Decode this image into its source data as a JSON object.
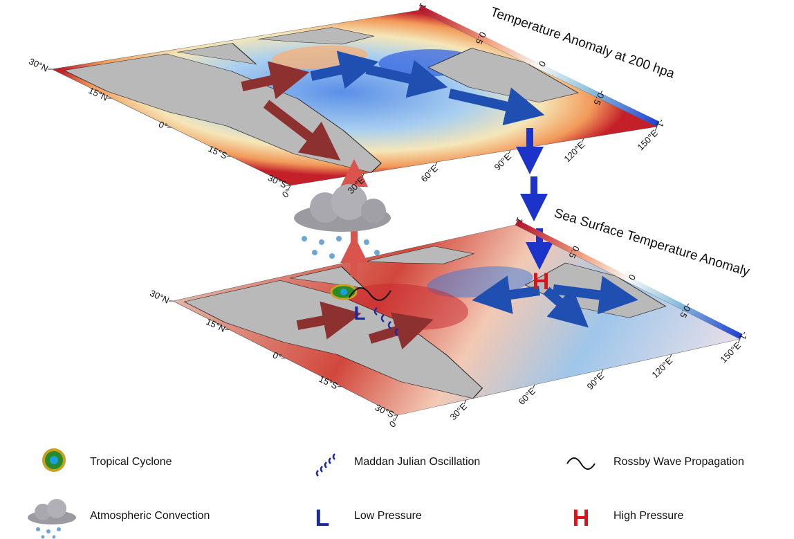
{
  "panels": [
    {
      "title": "Temperature Anomaly at 200 hpa",
      "colorbar_labels": [
        "1",
        "0.5",
        "0",
        "-0.5",
        "-1"
      ],
      "lat_labels": [
        "30°N",
        "15°N",
        "0°",
        "15°S",
        "30°S"
      ],
      "lon_labels": [
        "0°",
        "30°E",
        "60°E",
        "90°E",
        "120°E",
        "150°E"
      ]
    },
    {
      "title": "Sea Surface Temperature Anomaly",
      "colorbar_labels": [
        "1",
        "0.5",
        "0",
        "-0.5",
        "-1"
      ],
      "lat_labels": [
        "30°N",
        "15°N",
        "0°",
        "15°S",
        "30°S"
      ],
      "lon_labels": [
        "0°",
        "30°E",
        "60°E",
        "90°E",
        "120°E",
        "150°E"
      ],
      "pressure_labels": {
        "low": "L",
        "high": "H"
      }
    }
  ],
  "legend": [
    {
      "label": "Tropical Cyclone"
    },
    {
      "label": "Maddan Julian Oscillation"
    },
    {
      "label": "Rossby Wave Propagation"
    },
    {
      "label": "Atmospheric Convection"
    },
    {
      "label": "Low Pressure",
      "symbol": "L"
    },
    {
      "label": "High Pressure",
      "symbol": "H"
    }
  ]
}
